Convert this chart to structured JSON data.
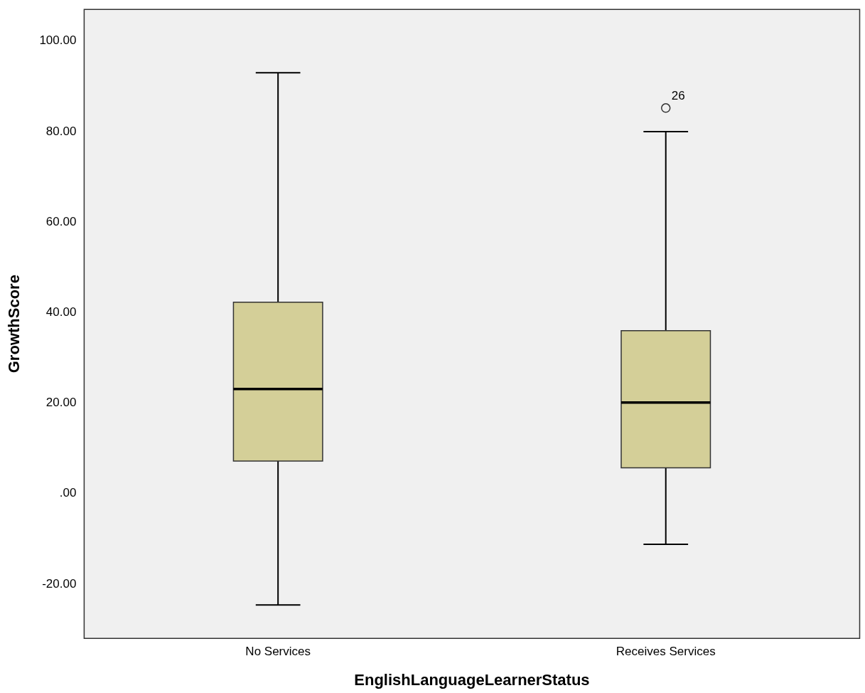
{
  "chart_data": {
    "type": "box",
    "xlabel": "EnglishLanguageLearnerStatus",
    "ylabel": "GrowthScore",
    "categories": [
      "No Services",
      "Receives Services"
    ],
    "boxes": [
      {
        "low": -24.6,
        "q1": 7.2,
        "median": 23.1,
        "q3": 42.3,
        "high": 93.0
      },
      {
        "low": -11.2,
        "q1": 5.7,
        "median": 20.1,
        "q3": 36.0,
        "high": 80.0,
        "outliers": [
          85.2
        ]
      }
    ],
    "color": "#d4cf98",
    "ylim": [
      -32,
      107
    ],
    "yticks": [
      {
        "value": -20,
        "label": "-20.00"
      },
      {
        "value": 0,
        "label": ".00"
      },
      {
        "value": 20,
        "label": "20.00"
      },
      {
        "value": 40,
        "label": "40.00"
      },
      {
        "value": 60,
        "label": "60.00"
      },
      {
        "value": 80,
        "label": "80.00"
      },
      {
        "value": 100,
        "label": "100.00"
      }
    ],
    "grid": false,
    "annotations": [
      "26"
    ]
  }
}
